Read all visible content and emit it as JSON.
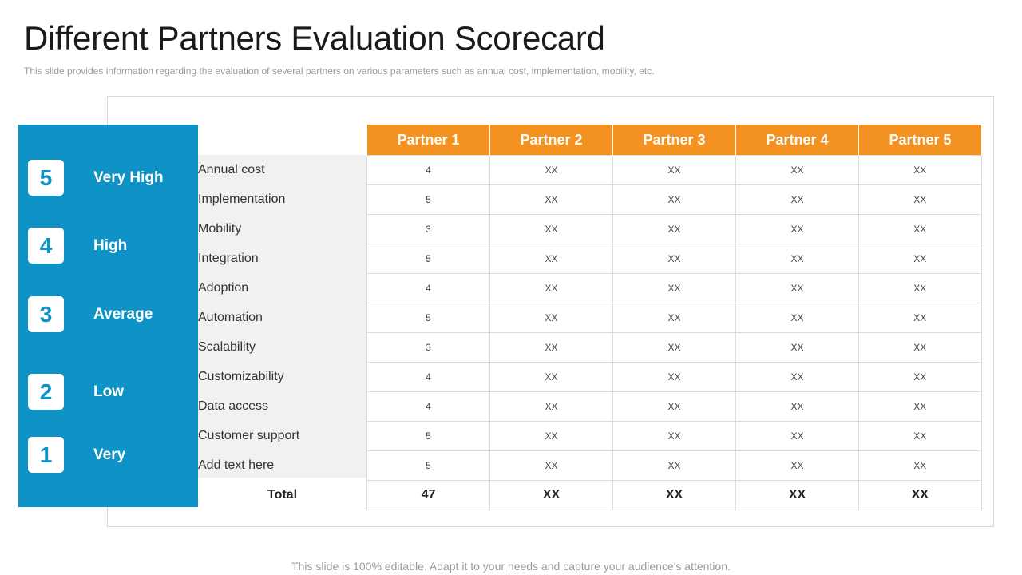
{
  "title": "Different Partners Evaluation Scorecard",
  "subtitle": "This slide provides  information  regarding  the evaluation  of several  partners on various  parameters  such as annual cost, implementation,  mobility,  etc.",
  "legend": [
    {
      "number": "5",
      "label": "Very High"
    },
    {
      "number": "4",
      "label": "High"
    },
    {
      "number": "3",
      "label": "Average"
    },
    {
      "number": "2",
      "label": "Low"
    },
    {
      "number": "1",
      "label": "Very"
    }
  ],
  "table": {
    "headers": [
      "Partner 1",
      "Partner 2",
      "Partner 3",
      "Partner 4",
      "Partner 5"
    ],
    "rows": [
      {
        "param": "Annual cost",
        "values": [
          "4",
          "XX",
          "XX",
          "XX",
          "XX"
        ]
      },
      {
        "param": "Implementation",
        "values": [
          "5",
          "XX",
          "XX",
          "XX",
          "XX"
        ]
      },
      {
        "param": "Mobility",
        "values": [
          "3",
          "XX",
          "XX",
          "XX",
          "XX"
        ]
      },
      {
        "param": "Integration",
        "values": [
          "5",
          "XX",
          "XX",
          "XX",
          "XX"
        ]
      },
      {
        "param": "Adoption",
        "values": [
          "4",
          "XX",
          "XX",
          "XX",
          "XX"
        ]
      },
      {
        "param": "Automation",
        "values": [
          "5",
          "XX",
          "XX",
          "XX",
          "XX"
        ]
      },
      {
        "param": "Scalability",
        "values": [
          "3",
          "XX",
          "XX",
          "XX",
          "XX"
        ]
      },
      {
        "param": "Customizability",
        "values": [
          "4",
          "XX",
          "XX",
          "XX",
          "XX"
        ]
      },
      {
        "param": "Data access",
        "values": [
          "4",
          "XX",
          "XX",
          "XX",
          "XX"
        ]
      },
      {
        "param": "Customer support",
        "values": [
          "5",
          "XX",
          "XX",
          "XX",
          "XX"
        ]
      },
      {
        "param": "Add text here",
        "values": [
          "5",
          "XX",
          "XX",
          "XX",
          "XX"
        ]
      }
    ],
    "total": {
      "label": "Total",
      "values": [
        "47",
        "XX",
        "XX",
        "XX",
        "XX"
      ]
    }
  },
  "footer": "This slide is 100% editable. Adapt it to your needs and capture your audience's attention.",
  "colors": {
    "legend_bg": "#0f93c7",
    "header_bg": "#f39221",
    "param_bg": "#f1f1f1"
  }
}
